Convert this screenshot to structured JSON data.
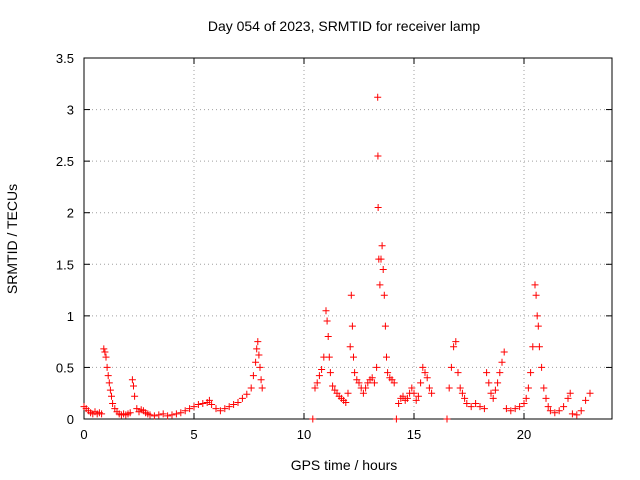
{
  "chart_data": {
    "type": "scatter",
    "title": "Day 054 of 2023, SRMTID for receiver lamp",
    "xlabel": "GPS time / hours",
    "ylabel": "SRMTID / TECUs",
    "xlim": [
      0,
      24
    ],
    "ylim": [
      0,
      3.5
    ],
    "grid": true,
    "marker": "plus",
    "series_color": "#ff0000",
    "x_ticks": [
      0,
      5,
      10,
      15,
      20
    ],
    "x_tick_labels": [
      "0",
      "5",
      "10",
      "15",
      "20"
    ],
    "y_ticks": [
      0,
      0.5,
      1,
      1.5,
      2,
      2.5,
      3,
      3.5
    ],
    "y_tick_labels": [
      "0",
      "0.5",
      "1",
      "1.5",
      "2",
      "2.5",
      "3",
      "3.5"
    ],
    "points": [
      [
        0.0,
        0.12
      ],
      [
        0.1,
        0.1
      ],
      [
        0.2,
        0.08
      ],
      [
        0.3,
        0.06
      ],
      [
        0.4,
        0.05
      ],
      [
        0.5,
        0.07
      ],
      [
        0.6,
        0.05
      ],
      [
        0.7,
        0.06
      ],
      [
        0.8,
        0.05
      ],
      [
        0.9,
        0.68
      ],
      [
        0.95,
        0.65
      ],
      [
        1.0,
        0.6
      ],
      [
        1.05,
        0.5
      ],
      [
        1.1,
        0.42
      ],
      [
        1.15,
        0.35
      ],
      [
        1.2,
        0.28
      ],
      [
        1.25,
        0.22
      ],
      [
        1.3,
        0.15
      ],
      [
        1.4,
        0.1
      ],
      [
        1.5,
        0.07
      ],
      [
        1.6,
        0.05
      ],
      [
        1.7,
        0.04
      ],
      [
        1.8,
        0.05
      ],
      [
        1.9,
        0.04
      ],
      [
        2.0,
        0.05
      ],
      [
        2.1,
        0.06
      ],
      [
        2.2,
        0.38
      ],
      [
        2.25,
        0.32
      ],
      [
        2.3,
        0.22
      ],
      [
        2.4,
        0.1
      ],
      [
        2.5,
        0.07
      ],
      [
        2.6,
        0.09
      ],
      [
        2.7,
        0.08
      ],
      [
        2.8,
        0.06
      ],
      [
        2.9,
        0.05
      ],
      [
        3.0,
        0.04
      ],
      [
        3.2,
        0.03
      ],
      [
        3.4,
        0.04
      ],
      [
        3.6,
        0.05
      ],
      [
        3.8,
        0.03
      ],
      [
        4.0,
        0.04
      ],
      [
        4.2,
        0.05
      ],
      [
        4.4,
        0.06
      ],
      [
        4.6,
        0.08
      ],
      [
        4.8,
        0.1
      ],
      [
        5.0,
        0.12
      ],
      [
        5.2,
        0.14
      ],
      [
        5.4,
        0.15
      ],
      [
        5.6,
        0.16
      ],
      [
        5.7,
        0.18
      ],
      [
        5.8,
        0.14
      ],
      [
        6.0,
        0.1
      ],
      [
        6.2,
        0.08
      ],
      [
        6.4,
        0.1
      ],
      [
        6.6,
        0.12
      ],
      [
        6.8,
        0.14
      ],
      [
        7.0,
        0.16
      ],
      [
        7.2,
        0.2
      ],
      [
        7.4,
        0.24
      ],
      [
        7.6,
        0.3
      ],
      [
        7.7,
        0.42
      ],
      [
        7.8,
        0.55
      ],
      [
        7.85,
        0.68
      ],
      [
        7.9,
        0.75
      ],
      [
        7.95,
        0.62
      ],
      [
        8.0,
        0.5
      ],
      [
        8.05,
        0.38
      ],
      [
        8.1,
        0.3
      ],
      [
        10.4,
        0.0
      ],
      [
        10.5,
        0.3
      ],
      [
        10.6,
        0.35
      ],
      [
        10.7,
        0.42
      ],
      [
        10.8,
        0.48
      ],
      [
        10.9,
        0.6
      ],
      [
        11.0,
        1.05
      ],
      [
        11.05,
        0.95
      ],
      [
        11.1,
        0.8
      ],
      [
        11.15,
        0.6
      ],
      [
        11.2,
        0.45
      ],
      [
        11.3,
        0.32
      ],
      [
        11.4,
        0.28
      ],
      [
        11.5,
        0.25
      ],
      [
        11.6,
        0.22
      ],
      [
        11.7,
        0.2
      ],
      [
        11.8,
        0.18
      ],
      [
        11.9,
        0.16
      ],
      [
        12.0,
        0.25
      ],
      [
        12.1,
        0.7
      ],
      [
        12.15,
        1.2
      ],
      [
        12.2,
        0.9
      ],
      [
        12.25,
        0.6
      ],
      [
        12.3,
        0.45
      ],
      [
        12.4,
        0.38
      ],
      [
        12.5,
        0.35
      ],
      [
        12.6,
        0.3
      ],
      [
        12.7,
        0.25
      ],
      [
        12.8,
        0.3
      ],
      [
        12.9,
        0.35
      ],
      [
        13.0,
        0.38
      ],
      [
        13.1,
        0.4
      ],
      [
        13.2,
        0.35
      ],
      [
        13.3,
        0.5
      ],
      [
        13.35,
        3.12
      ],
      [
        13.36,
        2.55
      ],
      [
        13.37,
        2.05
      ],
      [
        13.4,
        1.55
      ],
      [
        13.45,
        1.3
      ],
      [
        13.5,
        1.55
      ],
      [
        13.55,
        1.68
      ],
      [
        13.6,
        1.45
      ],
      [
        13.65,
        1.2
      ],
      [
        13.7,
        0.9
      ],
      [
        13.75,
        0.6
      ],
      [
        13.8,
        0.45
      ],
      [
        13.9,
        0.4
      ],
      [
        14.0,
        0.38
      ],
      [
        14.1,
        0.35
      ],
      [
        14.2,
        0.0
      ],
      [
        14.3,
        0.15
      ],
      [
        14.4,
        0.2
      ],
      [
        14.5,
        0.22
      ],
      [
        14.6,
        0.18
      ],
      [
        14.7,
        0.2
      ],
      [
        14.8,
        0.25
      ],
      [
        14.9,
        0.3
      ],
      [
        15.0,
        0.25
      ],
      [
        15.1,
        0.18
      ],
      [
        15.2,
        0.22
      ],
      [
        15.3,
        0.35
      ],
      [
        15.4,
        0.5
      ],
      [
        15.5,
        0.45
      ],
      [
        15.6,
        0.4
      ],
      [
        15.7,
        0.3
      ],
      [
        15.8,
        0.25
      ],
      [
        16.5,
        0.0
      ],
      [
        16.6,
        0.3
      ],
      [
        16.7,
        0.5
      ],
      [
        16.8,
        0.7
      ],
      [
        16.9,
        0.75
      ],
      [
        17.0,
        0.45
      ],
      [
        17.1,
        0.3
      ],
      [
        17.2,
        0.25
      ],
      [
        17.3,
        0.2
      ],
      [
        17.4,
        0.15
      ],
      [
        17.6,
        0.12
      ],
      [
        17.8,
        0.15
      ],
      [
        18.0,
        0.12
      ],
      [
        18.2,
        0.1
      ],
      [
        18.3,
        0.45
      ],
      [
        18.4,
        0.35
      ],
      [
        18.5,
        0.25
      ],
      [
        18.6,
        0.2
      ],
      [
        18.7,
        0.28
      ],
      [
        18.8,
        0.35
      ],
      [
        18.9,
        0.45
      ],
      [
        19.0,
        0.55
      ],
      [
        19.1,
        0.65
      ],
      [
        19.2,
        0.1
      ],
      [
        19.4,
        0.08
      ],
      [
        19.6,
        0.1
      ],
      [
        19.8,
        0.12
      ],
      [
        20.0,
        0.15
      ],
      [
        20.1,
        0.2
      ],
      [
        20.2,
        0.3
      ],
      [
        20.3,
        0.45
      ],
      [
        20.4,
        0.7
      ],
      [
        20.5,
        1.3
      ],
      [
        20.55,
        1.2
      ],
      [
        20.6,
        1.0
      ],
      [
        20.65,
        0.9
      ],
      [
        20.7,
        0.7
      ],
      [
        20.8,
        0.5
      ],
      [
        20.9,
        0.3
      ],
      [
        21.0,
        0.2
      ],
      [
        21.1,
        0.12
      ],
      [
        21.2,
        0.08
      ],
      [
        21.4,
        0.06
      ],
      [
        21.6,
        0.08
      ],
      [
        21.8,
        0.12
      ],
      [
        22.0,
        0.2
      ],
      [
        22.1,
        0.25
      ],
      [
        22.2,
        0.05
      ],
      [
        22.4,
        0.04
      ],
      [
        22.6,
        0.08
      ],
      [
        22.8,
        0.18
      ],
      [
        23.0,
        0.25
      ]
    ]
  }
}
